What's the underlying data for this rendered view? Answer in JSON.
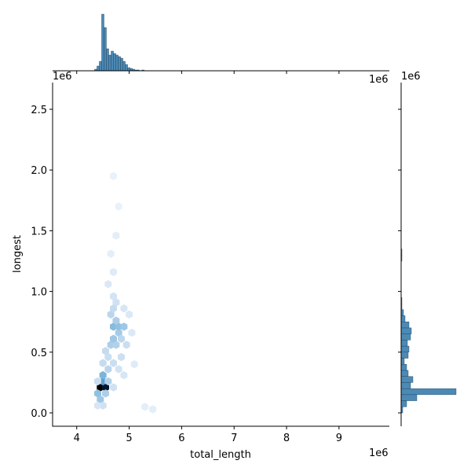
{
  "chart_data": {
    "type": "hexbin_joint",
    "x_label": "total_length",
    "y_label": "longest",
    "offset_labels": [
      "1e6",
      "1e6",
      "1e6",
      "1e6"
    ],
    "xlim": [
      3.54,
      9.96
    ],
    "xticks": [
      4,
      5,
      6,
      7,
      8,
      9
    ],
    "ylim": [
      -0.11,
      2.72
    ],
    "yticks": [
      {
        "value": 0,
        "label": "0.0"
      },
      0.5,
      {
        "value": 1,
        "label": "1.0"
      },
      1.5,
      {
        "value": 2,
        "label": "2.0"
      },
      2.5
    ],
    "hexbins": {
      "x": [
        4.45,
        4.55,
        4.5,
        4.5,
        4.4,
        4.45,
        4.55,
        4.6,
        4.5,
        4.6,
        4.55,
        4.65,
        4.75,
        4.7,
        4.8,
        4.7,
        4.8,
        4.9,
        4.75,
        4.65,
        4.7,
        4.75,
        4.7,
        4.85,
        4.95,
        4.85,
        4.7,
        4.8,
        4.9,
        4.4,
        4.6,
        4.7,
        4.5,
        4.4,
        4.9,
        5.0,
        5.05,
        4.6,
        4.7,
        4.65,
        4.75,
        4.8,
        4.7,
        5.3,
        5.45,
        5.1
      ],
      "y": [
        0.21,
        0.21,
        0.26,
        0.31,
        0.16,
        0.11,
        0.16,
        0.36,
        0.41,
        0.46,
        0.51,
        0.56,
        0.56,
        0.61,
        0.66,
        0.71,
        0.71,
        0.71,
        0.76,
        0.81,
        0.86,
        0.91,
        0.96,
        0.61,
        0.56,
        0.46,
        0.41,
        0.36,
        0.31,
        0.26,
        0.26,
        0.21,
        0.06,
        0.06,
        0.86,
        0.81,
        0.66,
        1.06,
        1.16,
        1.31,
        1.46,
        1.7,
        1.95,
        0.05,
        0.03,
        0.4
      ],
      "counts": [
        300,
        250,
        60,
        40,
        30,
        25,
        20,
        15,
        12,
        10,
        12,
        20,
        18,
        25,
        22,
        35,
        30,
        25,
        20,
        15,
        12,
        8,
        6,
        14,
        10,
        9,
        10,
        7,
        5,
        10,
        18,
        8,
        8,
        5,
        5,
        4,
        4,
        4,
        3,
        2,
        2,
        1,
        1,
        2,
        2,
        3
      ]
    },
    "x_hist": {
      "bins": [
        4.34,
        4.385,
        4.43,
        4.475,
        4.52,
        4.565,
        4.61,
        4.655,
        4.7,
        4.745,
        4.79,
        4.835,
        4.88,
        4.925,
        4.97,
        5.015,
        5.06,
        5.105,
        5.15,
        5.195,
        5.24,
        5.285
      ],
      "counts": [
        2,
        6,
        12,
        72,
        55,
        28,
        20,
        25,
        22,
        20,
        18,
        16,
        12,
        8,
        4,
        3,
        2,
        1,
        1,
        0,
        1
      ],
      "ylim": [
        0,
        75
      ],
      "color": "#4c8ab5"
    },
    "y_hist": {
      "bins": [
        0,
        0.05,
        0.1,
        0.15,
        0.2,
        0.25,
        0.3,
        0.35,
        0.4,
        0.45,
        0.5,
        0.55,
        0.6,
        0.65,
        0.7,
        0.75,
        0.8,
        0.85,
        0.9,
        0.95,
        1.0,
        1.05,
        1.1,
        1.15,
        1.2,
        1.25,
        1.3,
        1.35
      ],
      "counts": [
        2,
        7,
        20,
        70,
        12,
        15,
        9,
        7,
        4,
        9,
        10,
        8,
        12,
        13,
        10,
        5,
        3,
        1,
        1,
        0,
        0,
        0,
        0,
        0,
        0,
        1,
        1
      ],
      "xlim": [
        0,
        85
      ],
      "color": "#4c8ab5"
    }
  }
}
